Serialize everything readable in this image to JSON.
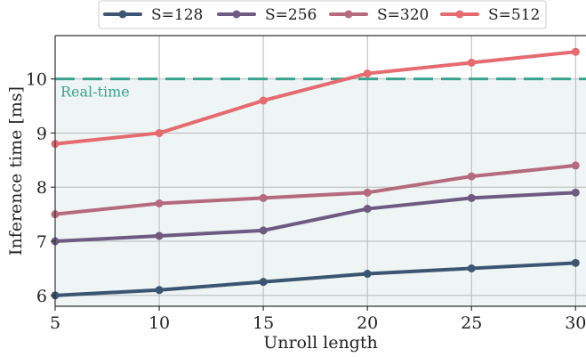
{
  "chart_data": {
    "type": "line",
    "title": "",
    "xlabel": "Unroll length",
    "ylabel": "Inference time [ms]",
    "xlim": [
      5,
      30.5
    ],
    "ylim": [
      5.8,
      10.8
    ],
    "x_ticks": [
      5,
      10,
      15,
      20,
      25,
      30
    ],
    "y_ticks": [
      6,
      7,
      8,
      9,
      10
    ],
    "grid": true,
    "legend_position": "top-center",
    "x": [
      5,
      10,
      15,
      20,
      25,
      30
    ],
    "series": [
      {
        "name": "S=128",
        "color": "#3b5573",
        "values": [
          6.0,
          6.1,
          6.25,
          6.4,
          6.5,
          6.6
        ]
      },
      {
        "name": "S=256",
        "color": "#6e5a82",
        "values": [
          7.0,
          7.1,
          7.2,
          7.6,
          7.8,
          7.9
        ]
      },
      {
        "name": "S=320",
        "color": "#b56a7d",
        "values": [
          7.5,
          7.7,
          7.8,
          7.9,
          8.2,
          8.4
        ]
      },
      {
        "name": "S=512",
        "color": "#e56b70",
        "values": [
          8.8,
          9.0,
          9.6,
          10.1,
          10.3,
          10.5
        ]
      }
    ],
    "threshold": {
      "value": 10,
      "label": "Real-time",
      "color": "#3aa38f",
      "fill": "#eef5f4"
    }
  }
}
